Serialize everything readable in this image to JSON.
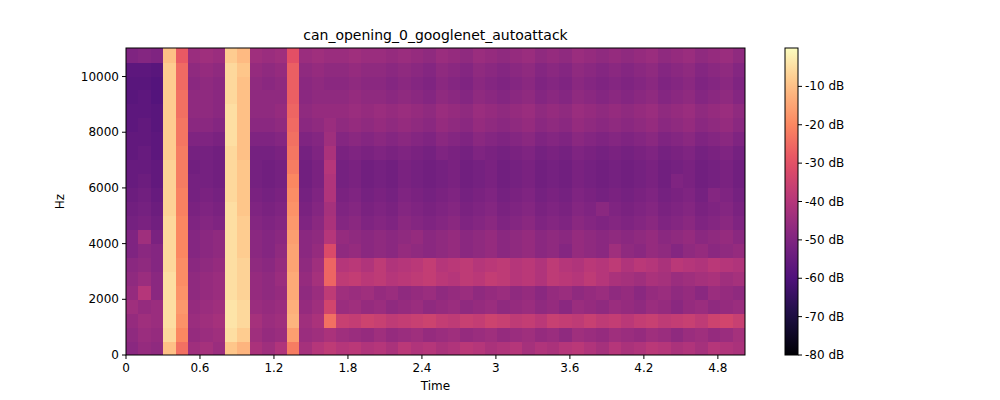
{
  "chart_data": {
    "type": "heatmap",
    "title": "can_opening_0_googlenet_autoattack",
    "x_label": "Time",
    "y_label": "Hz",
    "xlim": [
      0,
      5.02
    ],
    "xticks": [
      0,
      0.6,
      1.2,
      1.8,
      2.4,
      3,
      3.6,
      4.2,
      4.8
    ],
    "ylim": [
      0,
      11025
    ],
    "yticks": [
      0,
      2000,
      4000,
      6000,
      8000,
      10000
    ],
    "colorbar_range": [
      -80,
      0
    ],
    "colorbar_ticks": [
      {
        "value": -10,
        "label": "-10 dB"
      },
      {
        "value": -20,
        "label": "-20 dB"
      },
      {
        "value": -30,
        "label": "-30 dB"
      },
      {
        "value": -40,
        "label": "-40 dB"
      },
      {
        "value": -50,
        "label": "-50 dB"
      },
      {
        "value": -60,
        "label": "-60 dB"
      },
      {
        "value": -70,
        "label": "-70 dB"
      },
      {
        "value": -80,
        "label": "-80 dB"
      }
    ],
    "cells": [
      [
        -48,
        -46,
        -47,
        -10,
        -24,
        -44,
        -43,
        -45,
        -9,
        -12,
        -42,
        -44,
        -41,
        -22,
        -43,
        -40,
        -38,
        -40,
        -39,
        -41,
        -40,
        -42,
        -39,
        -41,
        -40,
        -42,
        -41,
        -39,
        -40,
        -42,
        -41,
        -40,
        -43,
        -41,
        -42,
        -40,
        -39,
        -41,
        -43,
        -40,
        -42,
        -41,
        -39,
        -40,
        -42,
        -41,
        -43,
        -40,
        -41,
        -42
      ],
      [
        -47,
        -45,
        -46,
        -6,
        -20,
        -46,
        -45,
        -44,
        -5,
        -8,
        -44,
        -46,
        -45,
        -16,
        -45,
        -44,
        -42,
        -44,
        -45,
        -46,
        -44,
        -46,
        -45,
        -44,
        -46,
        -45,
        -44,
        -46,
        -45,
        -44,
        -46,
        -45,
        -44,
        -46,
        -45,
        -47,
        -44,
        -45,
        -46,
        -44,
        -45,
        -46,
        -44,
        -45,
        -47,
        -45,
        -44,
        -46,
        -45,
        -43
      ],
      [
        -46,
        -44,
        -45,
        -5,
        -18,
        -45,
        -44,
        -43,
        -4,
        -6,
        -43,
        -45,
        -44,
        -12,
        -44,
        -42,
        -24,
        -36,
        -37,
        -35,
        -36,
        -38,
        -37,
        -36,
        -35,
        -37,
        -38,
        -36,
        -37,
        -35,
        -36,
        -38,
        -37,
        -39,
        -36,
        -37,
        -38,
        -36,
        -38,
        -37,
        -39,
        -37,
        -36,
        -38,
        -37,
        -36,
        -38,
        -35,
        -34,
        -36
      ],
      [
        -44,
        -46,
        -45,
        -5,
        -17,
        -46,
        -45,
        -44,
        -4,
        -6,
        -45,
        -46,
        -45,
        -13,
        -46,
        -44,
        -34,
        -45,
        -44,
        -46,
        -45,
        -47,
        -46,
        -45,
        -47,
        -46,
        -45,
        -47,
        -46,
        -45,
        -47,
        -46,
        -45,
        -47,
        -46,
        -48,
        -45,
        -46,
        -47,
        -45,
        -46,
        -47,
        -45,
        -46,
        -48,
        -46,
        -45,
        -47,
        -46,
        -45
      ],
      [
        -46,
        -40,
        -48,
        -5,
        -18,
        -47,
        -46,
        -45,
        -5,
        -7,
        -46,
        -47,
        -46,
        -14,
        -47,
        -45,
        -38,
        -44,
        -45,
        -44,
        -46,
        -45,
        -47,
        -46,
        -45,
        -47,
        -46,
        -45,
        -47,
        -46,
        -45,
        -47,
        -46,
        -48,
        -46,
        -45,
        -47,
        -46,
        -45,
        -47,
        -46,
        -48,
        -46,
        -45,
        -47,
        -46,
        -48,
        -45,
        -46,
        -47
      ],
      [
        -47,
        -45,
        -48,
        -5,
        -19,
        -47,
        -46,
        -45,
        -5,
        -7,
        -46,
        -47,
        -45,
        -14,
        -46,
        -43,
        -26,
        -38,
        -37,
        -39,
        -38,
        -40,
        -39,
        -38,
        -37,
        -39,
        -40,
        -38,
        -39,
        -37,
        -38,
        -40,
        -39,
        -41,
        -38,
        -39,
        -40,
        -38,
        -40,
        -42,
        -43,
        -44,
        -42,
        -43,
        -45,
        -44,
        -43,
        -42,
        -44,
        -43
      ],
      [
        -48,
        -47,
        -49,
        -6,
        -19,
        -48,
        -47,
        -46,
        -5,
        -7,
        -47,
        -48,
        -46,
        -15,
        -47,
        -44,
        -26,
        -40,
        -39,
        -41,
        -38,
        -41,
        -40,
        -39,
        -37,
        -40,
        -39,
        -38,
        -40,
        -39,
        -38,
        -40,
        -39,
        -41,
        -38,
        -40,
        -41,
        -39,
        -40,
        -38,
        -41,
        -39,
        -40,
        -42,
        -39,
        -40,
        -41,
        -39,
        -40,
        -41
      ],
      [
        -50,
        -48,
        -49,
        -6,
        -20,
        -49,
        -48,
        -47,
        -5,
        -8,
        -48,
        -49,
        -47,
        -15,
        -48,
        -46,
        -32,
        -47,
        -46,
        -48,
        -47,
        -48,
        -46,
        -47,
        -48,
        -47,
        -46,
        -48,
        -47,
        -46,
        -48,
        -47,
        -46,
        -48,
        -47,
        -49,
        -46,
        -47,
        -48,
        -44,
        -47,
        -48,
        -46,
        -47,
        -49,
        -47,
        -46,
        -48,
        -47,
        -46
      ],
      [
        -50,
        -44,
        -51,
        -6,
        -20,
        -49,
        -48,
        -47,
        -5,
        -8,
        -48,
        -49,
        -48,
        -16,
        -48,
        -47,
        -40,
        -46,
        -47,
        -48,
        -47,
        -48,
        -47,
        -46,
        -48,
        -47,
        -46,
        -48,
        -47,
        -46,
        -48,
        -47,
        -46,
        -48,
        -47,
        -48,
        -46,
        -47,
        -48,
        -47,
        -48,
        -47,
        -46,
        -48,
        -47,
        -46,
        -48,
        -47,
        -46,
        -48
      ],
      [
        -52,
        -51,
        -53,
        -6,
        -20,
        -50,
        -49,
        -50,
        -5,
        -8,
        -49,
        -50,
        -49,
        -17,
        -50,
        -48,
        -42,
        -49,
        -48,
        -50,
        -49,
        -50,
        -48,
        -49,
        -50,
        -49,
        -48,
        -50,
        -49,
        -48,
        -50,
        -49,
        -48,
        -50,
        -49,
        -50,
        -48,
        -49,
        -50,
        -49,
        -50,
        -49,
        -48,
        -50,
        -49,
        -48,
        -50,
        -49,
        -48,
        -50
      ],
      [
        -53,
        -52,
        -54,
        -7,
        -21,
        -51,
        -50,
        -51,
        -5,
        -9,
        -50,
        -51,
        -50,
        -18,
        -51,
        -49,
        -43,
        -50,
        -49,
        -51,
        -50,
        -51,
        -49,
        -50,
        -51,
        -50,
        -49,
        -51,
        -50,
        -49,
        -51,
        -50,
        -49,
        -51,
        -50,
        -51,
        -49,
        -50,
        -48,
        -50,
        -51,
        -50,
        -49,
        -51,
        -50,
        -49,
        -51,
        -50,
        -49,
        -51
      ],
      [
        -54,
        -53,
        -55,
        -7,
        -21,
        -52,
        -51,
        -52,
        -6,
        -9,
        -51,
        -52,
        -51,
        -19,
        -52,
        -50,
        -41,
        -51,
        -50,
        -52,
        -51,
        -52,
        -50,
        -51,
        -52,
        -51,
        -50,
        -52,
        -51,
        -50,
        -52,
        -51,
        -50,
        -52,
        -51,
        -52,
        -50,
        -51,
        -52,
        -51,
        -52,
        -51,
        -50,
        -52,
        -51,
        -50,
        -52,
        -49,
        -50,
        -52
      ],
      [
        -55,
        -54,
        -56,
        -7,
        -22,
        -52,
        -52,
        -53,
        -6,
        -9,
        -52,
        -53,
        -52,
        -20,
        -53,
        -51,
        -41,
        -52,
        -51,
        -53,
        -52,
        -53,
        -51,
        -52,
        -53,
        -52,
        -51,
        -53,
        -52,
        -51,
        -53,
        -52,
        -51,
        -53,
        -52,
        -53,
        -51,
        -52,
        -53,
        -52,
        -53,
        -52,
        -51,
        -53,
        -50,
        -51,
        -53,
        -52,
        -51,
        -53
      ],
      [
        -55,
        -55,
        -56,
        -7,
        -22,
        -53,
        -52,
        -53,
        -6,
        -9,
        -52,
        -53,
        -52,
        -22,
        -53,
        -51,
        -40,
        -52,
        -51,
        -53,
        -52,
        -53,
        -51,
        -52,
        -53,
        -52,
        -51,
        -53,
        -52,
        -51,
        -53,
        -52,
        -51,
        -53,
        -52,
        -53,
        -51,
        -52,
        -53,
        -52,
        -53,
        -52,
        -51,
        -53,
        -52,
        -51,
        -53,
        -52,
        -51,
        -53
      ],
      [
        -56,
        -55,
        -57,
        -8,
        -22,
        -52,
        -52,
        -53,
        -6,
        -10,
        -52,
        -52,
        -51,
        -23,
        -52,
        -50,
        -42,
        -51,
        -50,
        -51,
        -50,
        -51,
        -50,
        -51,
        -52,
        -50,
        -51,
        -52,
        -50,
        -51,
        -52,
        -51,
        -50,
        -52,
        -51,
        -52,
        -50,
        -51,
        -52,
        -51,
        -52,
        -51,
        -50,
        -52,
        -51,
        -50,
        -52,
        -51,
        -50,
        -52
      ],
      [
        -56,
        -56,
        -57,
        -8,
        -23,
        -50,
        -50,
        -51,
        -5,
        -10,
        -50,
        -50,
        -49,
        -24,
        -50,
        -49,
        -44,
        -49,
        -48,
        -49,
        -48,
        -49,
        -48,
        -49,
        -50,
        -48,
        -49,
        -50,
        -48,
        -49,
        -50,
        -49,
        -48,
        -50,
        -49,
        -50,
        -48,
        -49,
        -50,
        -49,
        -50,
        -49,
        -48,
        -50,
        -49,
        -48,
        -50,
        -49,
        -48,
        -50
      ],
      [
        -57,
        -56,
        -58,
        -8,
        -23,
        -48,
        -48,
        -49,
        -5,
        -10,
        -48,
        -48,
        -47,
        -25,
        -48,
        -47,
        -45,
        -47,
        -46,
        -47,
        -46,
        -47,
        -46,
        -47,
        -48,
        -46,
        -47,
        -48,
        -46,
        -47,
        -48,
        -47,
        -46,
        -48,
        -47,
        -48,
        -46,
        -47,
        -48,
        -47,
        -48,
        -47,
        -46,
        -48,
        -47,
        -46,
        -48,
        -47,
        -46,
        -48
      ],
      [
        -57,
        -57,
        -58,
        -8,
        -24,
        -47,
        -47,
        -48,
        -5,
        -10,
        -47,
        -47,
        -46,
        -26,
        -47,
        -46,
        -46,
        -46,
        -45,
        -46,
        -45,
        -46,
        -45,
        -46,
        -47,
        -45,
        -46,
        -47,
        -45,
        -46,
        -47,
        -46,
        -45,
        -47,
        -46,
        -47,
        -45,
        -46,
        -47,
        -46,
        -47,
        -46,
        -45,
        -47,
        -46,
        -45,
        -47,
        -46,
        -45,
        -47
      ],
      [
        -58,
        -57,
        -59,
        -8,
        -24,
        -47,
        -47,
        -48,
        -6,
        -10,
        -47,
        -47,
        -47,
        -27,
        -48,
        -47,
        -47,
        -47,
        -46,
        -47,
        -47,
        -48,
        -47,
        -48,
        -49,
        -47,
        -48,
        -49,
        -47,
        -48,
        -49,
        -48,
        -47,
        -49,
        -48,
        -49,
        -47,
        -48,
        -49,
        -48,
        -49,
        -48,
        -47,
        -49,
        -48,
        -47,
        -49,
        -48,
        -47,
        -49
      ],
      [
        -58,
        -58,
        -59,
        -8,
        -25,
        -48,
        -47,
        -48,
        -6,
        -10,
        -47,
        -48,
        -47,
        -27,
        -48,
        -47,
        -48,
        -48,
        -47,
        -48,
        -48,
        -49,
        -48,
        -49,
        -50,
        -48,
        -49,
        -50,
        -48,
        -49,
        -50,
        -49,
        -48,
        -50,
        -49,
        -50,
        -48,
        -49,
        -50,
        -49,
        -50,
        -49,
        -48,
        -50,
        -49,
        -48,
        -50,
        -49,
        -48,
        -50
      ],
      [
        -57,
        -57,
        -58,
        -8,
        -25,
        -47,
        -46,
        -47,
        -6,
        -9,
        -46,
        -47,
        -46,
        -27,
        -47,
        -46,
        -47,
        -47,
        -46,
        -47,
        -47,
        -48,
        -47,
        -48,
        -49,
        -47,
        -48,
        -49,
        -47,
        -48,
        -49,
        -48,
        -47,
        -49,
        -48,
        -49,
        -47,
        -48,
        -49,
        -48,
        -49,
        -48,
        -47,
        -49,
        -48,
        -47,
        -49,
        -48,
        -47,
        -49
      ],
      [
        -50,
        -49,
        -50,
        -10,
        -28,
        -45,
        -44,
        -45,
        -8,
        -11,
        -44,
        -45,
        -44,
        -30,
        -45,
        -44,
        -45,
        -45,
        -44,
        -45,
        -45,
        -46,
        -45,
        -46,
        -47,
        -45,
        -46,
        -47,
        -45,
        -46,
        -47,
        -46,
        -45,
        -47,
        -46,
        -47,
        -45,
        -46,
        -47,
        -46,
        -47,
        -46,
        -45,
        -47,
        -46,
        -45,
        -47,
        -46,
        -45,
        -47
      ]
    ]
  }
}
